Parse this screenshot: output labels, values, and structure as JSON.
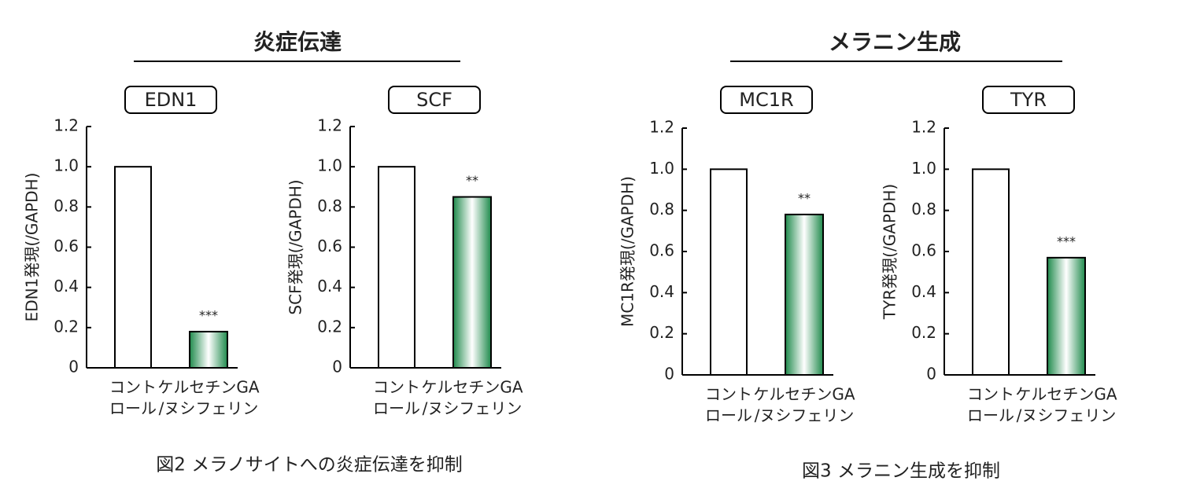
{
  "groups": [
    {
      "title": "炎症伝達",
      "caption": "図2  メラノサイトへの炎症伝達を抑制"
    },
    {
      "title": "メラニン生成",
      "caption": "図3  メラニン生成を抑制"
    }
  ],
  "chart_data": [
    {
      "type": "bar",
      "title": "EDN1",
      "y_label": "EDN1発現(/GAPDH)",
      "categories": [
        [
          "コント",
          "ロール"
        ],
        [
          "ケルセチンGA",
          "/ヌシフェリン"
        ]
      ],
      "values": [
        1.0,
        0.18
      ],
      "significance": [
        null,
        "***"
      ],
      "colors": [
        "#ffffff",
        "#1f8a4c"
      ],
      "ylim": [
        0,
        1.2
      ],
      "yticks": [
        0,
        0.2,
        0.4,
        0.6,
        0.8,
        {
          "value": 1,
          "label": "1.0"
        },
        1.2
      ]
    },
    {
      "type": "bar",
      "title": "SCF",
      "y_label": "SCF発現(/GAPDH)",
      "categories": [
        [
          "コント",
          "ロール"
        ],
        [
          "ケルセチンGA",
          "/ヌシフェリン"
        ]
      ],
      "values": [
        1.0,
        0.85
      ],
      "significance": [
        null,
        "**"
      ],
      "colors": [
        "#ffffff",
        "#1f8a4c"
      ],
      "ylim": [
        0,
        1.2
      ],
      "yticks": [
        0,
        0.2,
        0.4,
        0.6,
        0.8,
        {
          "value": 1,
          "label": "1.0"
        },
        1.2
      ]
    },
    {
      "type": "bar",
      "title": "MC1R",
      "y_label": "MC1R発現(/GAPDH)",
      "categories": [
        [
          "コント",
          "ロール"
        ],
        [
          "ケルセチンGA",
          "/ヌシフェリン"
        ]
      ],
      "values": [
        1.0,
        0.78
      ],
      "significance": [
        null,
        "**"
      ],
      "colors": [
        "#ffffff",
        "#1f8a4c"
      ],
      "ylim": [
        0,
        1.2
      ],
      "yticks": [
        0,
        0.2,
        0.4,
        0.6,
        0.8,
        {
          "value": 1,
          "label": "1.0"
        },
        1.2
      ]
    },
    {
      "type": "bar",
      "title": "TYR",
      "y_label": "TYR発現(/GAPDH)",
      "categories": [
        [
          "コント",
          "ロール"
        ],
        [
          "ケルセチンGA",
          "/ヌシフェリン"
        ]
      ],
      "values": [
        1.0,
        0.57
      ],
      "significance": [
        null,
        "***"
      ],
      "colors": [
        "#ffffff",
        "#1f8a4c"
      ],
      "ylim": [
        0,
        1.2
      ],
      "yticks": [
        0,
        0.2,
        0.4,
        0.6,
        0.8,
        {
          "value": 1,
          "label": "1.0"
        },
        1.2
      ]
    }
  ]
}
